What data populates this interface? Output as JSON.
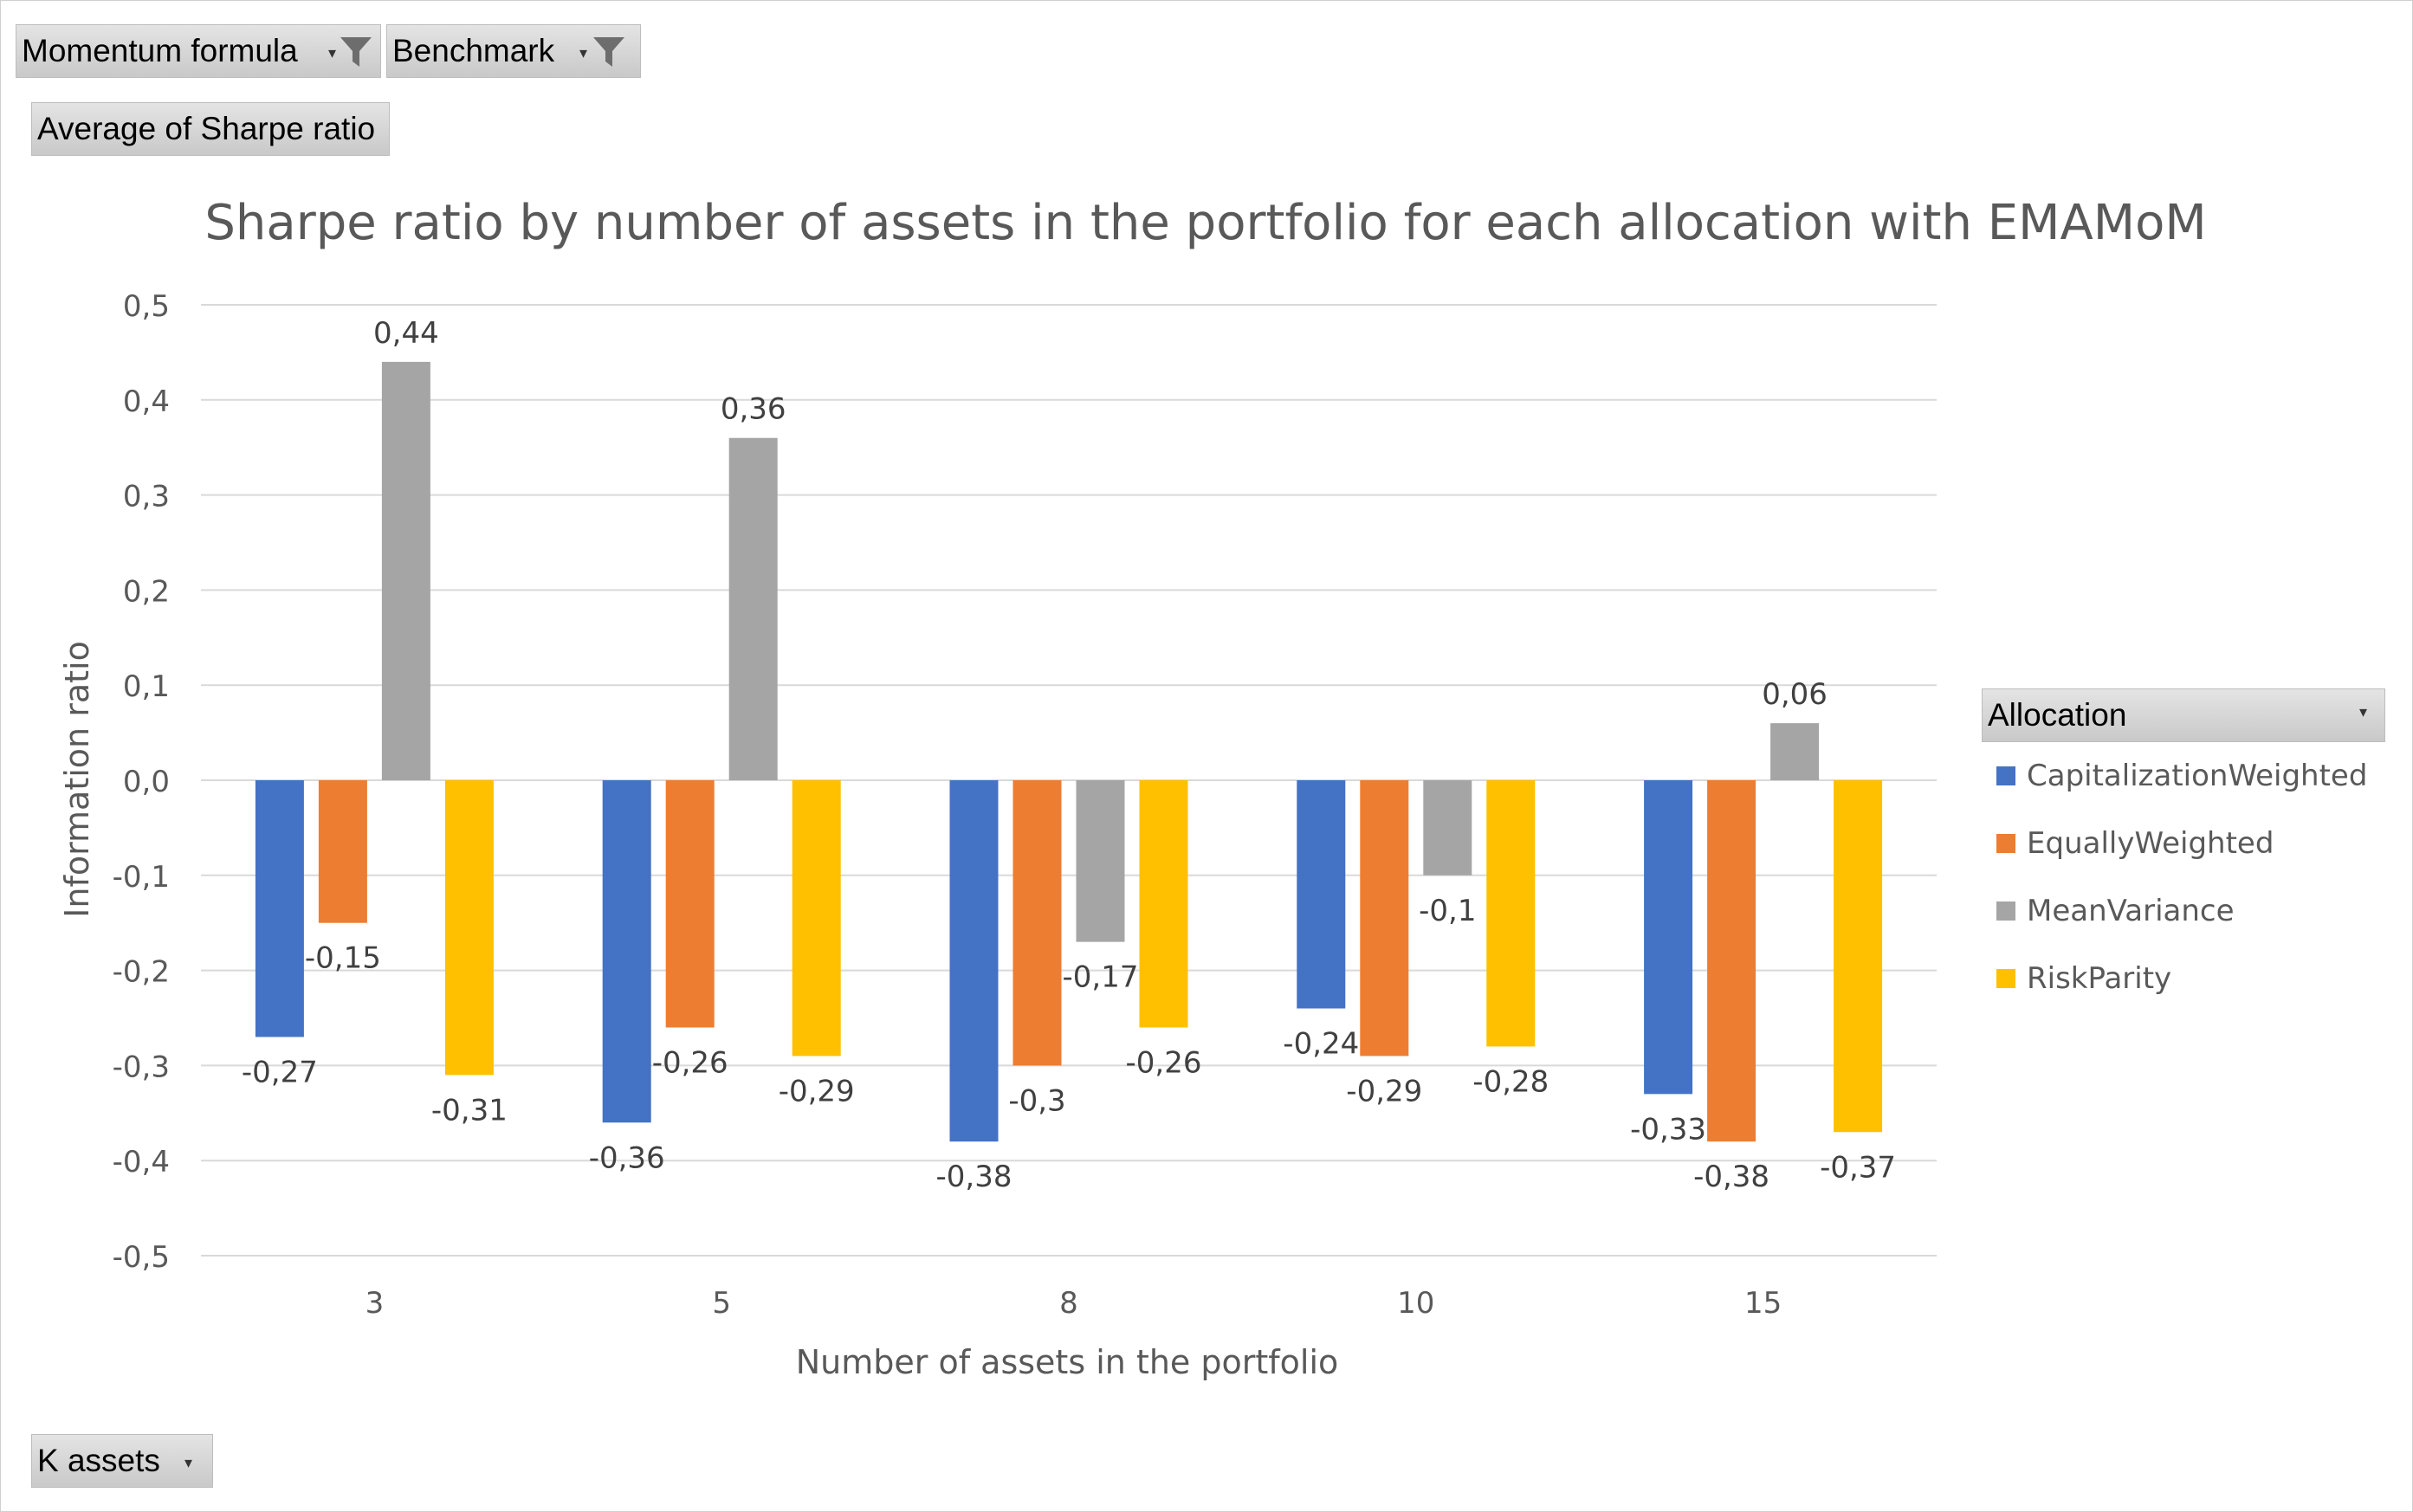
{
  "filters": [
    {
      "label": "Momentum formula"
    },
    {
      "label": "Benchmark"
    }
  ],
  "values_field": {
    "label": "Average  of Sharpe ratio"
  },
  "axis_field": {
    "label": "K assets"
  },
  "legend_field": {
    "label": "Allocation"
  },
  "chart_data": {
    "type": "bar",
    "title": "Sharpe ratio by number of assets in the portfolio for each allocation with EMAMoM",
    "xlabel": "Number of assets in the portfolio",
    "ylabel": "Information ratio",
    "categories": [
      "3",
      "5",
      "8",
      "10",
      "15"
    ],
    "ylim": [
      -0.5,
      0.5
    ],
    "yticks": [
      "-0,5",
      "-0,4",
      "-0,3",
      "-0,2",
      "-0,1",
      "0,0",
      "0,1",
      "0,2",
      "0,3",
      "0,4",
      "0,5"
    ],
    "grid": true,
    "legend_position": "right",
    "series": [
      {
        "name": "CapitalizationWeighted",
        "color": "#4472C4",
        "values": [
          -0.27,
          -0.36,
          -0.38,
          -0.24,
          -0.33
        ],
        "labels": [
          "-0,27",
          "-0,36",
          "-0,38",
          "-0,24",
          "-0,33"
        ]
      },
      {
        "name": "EquallyWeighted",
        "color": "#ED7D31",
        "values": [
          -0.15,
          -0.26,
          -0.3,
          -0.29,
          -0.38
        ],
        "labels": [
          "-0,15",
          "-0,26",
          "-0,3",
          "-0,29",
          "-0,38"
        ]
      },
      {
        "name": "MeanVariance",
        "color": "#A5A5A5",
        "values": [
          0.44,
          0.36,
          -0.17,
          -0.1,
          0.06
        ],
        "labels": [
          "0,44",
          "0,36",
          "-0,17",
          "-0,1",
          "0,06"
        ]
      },
      {
        "name": "RiskParity",
        "color": "#FFC000",
        "values": [
          -0.31,
          -0.29,
          -0.26,
          -0.28,
          -0.37
        ],
        "labels": [
          "-0,31",
          "-0,29",
          "-0,26",
          "-0,28",
          "-0,37"
        ]
      }
    ]
  }
}
